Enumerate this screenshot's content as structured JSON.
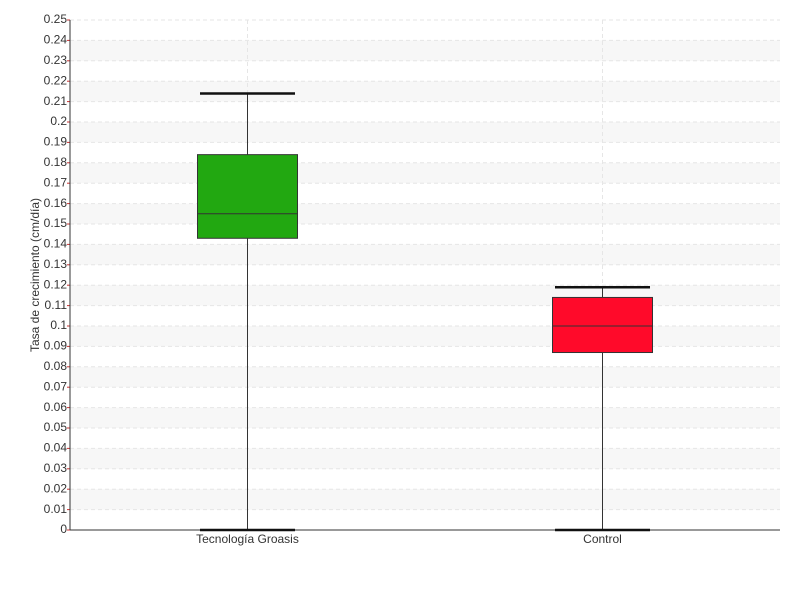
{
  "chart_data": {
    "type": "box",
    "ylabel": "Tasa de crecimiento (cm/día)",
    "categories": [
      "Tecnología Groasis",
      "Control"
    ],
    "boxes": [
      {
        "min": 0,
        "q1": 0.143,
        "median": 0.155,
        "q3": 0.184,
        "max": 0.214,
        "color": "#22a811"
      },
      {
        "min": 0,
        "q1": 0.087,
        "median": 0.1,
        "q3": 0.114,
        "max": 0.119,
        "color": "#ff0a2a"
      }
    ],
    "ylim": [
      0,
      0.25
    ],
    "yticks": [
      0,
      0.01,
      0.02,
      0.03,
      0.04,
      0.05,
      0.06,
      0.07,
      0.08,
      0.09,
      0.1,
      0.11,
      0.12,
      0.13,
      0.14,
      0.15,
      0.16,
      0.17,
      0.18,
      0.19,
      0.2,
      0.21,
      0.22,
      0.23,
      0.24,
      0.25
    ],
    "grid": true
  }
}
